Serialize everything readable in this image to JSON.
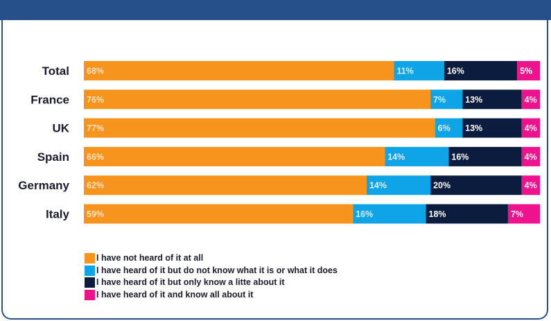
{
  "header": {
    "title": ""
  },
  "chart_data": {
    "type": "bar",
    "orientation": "horizontal",
    "stacked": true,
    "value_suffix": "%",
    "categories": [
      "Total",
      "France",
      "UK",
      "Spain",
      "Germany",
      "Italy"
    ],
    "series": [
      {
        "name": "I have not heard of it at all",
        "color": "#f7941d",
        "label_color": "#fde3c0",
        "values": [
          68,
          76,
          77,
          66,
          62,
          59
        ]
      },
      {
        "name": "I have heard of it but do not know what it is or what it does",
        "color": "#0ea4e6",
        "label_color": "#d9f1fc",
        "values": [
          11,
          7,
          6,
          14,
          14,
          16
        ]
      },
      {
        "name": "I have heard of it but only know a litte about it",
        "color": "#0c1c3f",
        "label_color": "#ffffff",
        "values": [
          16,
          13,
          13,
          16,
          20,
          18
        ]
      },
      {
        "name": "I have heard of it and know all about it",
        "color": "#ec138c",
        "label_color": "#ffffff",
        "values": [
          5,
          4,
          4,
          4,
          4,
          7
        ]
      }
    ],
    "legend_position": "bottom-left",
    "grid": false
  }
}
